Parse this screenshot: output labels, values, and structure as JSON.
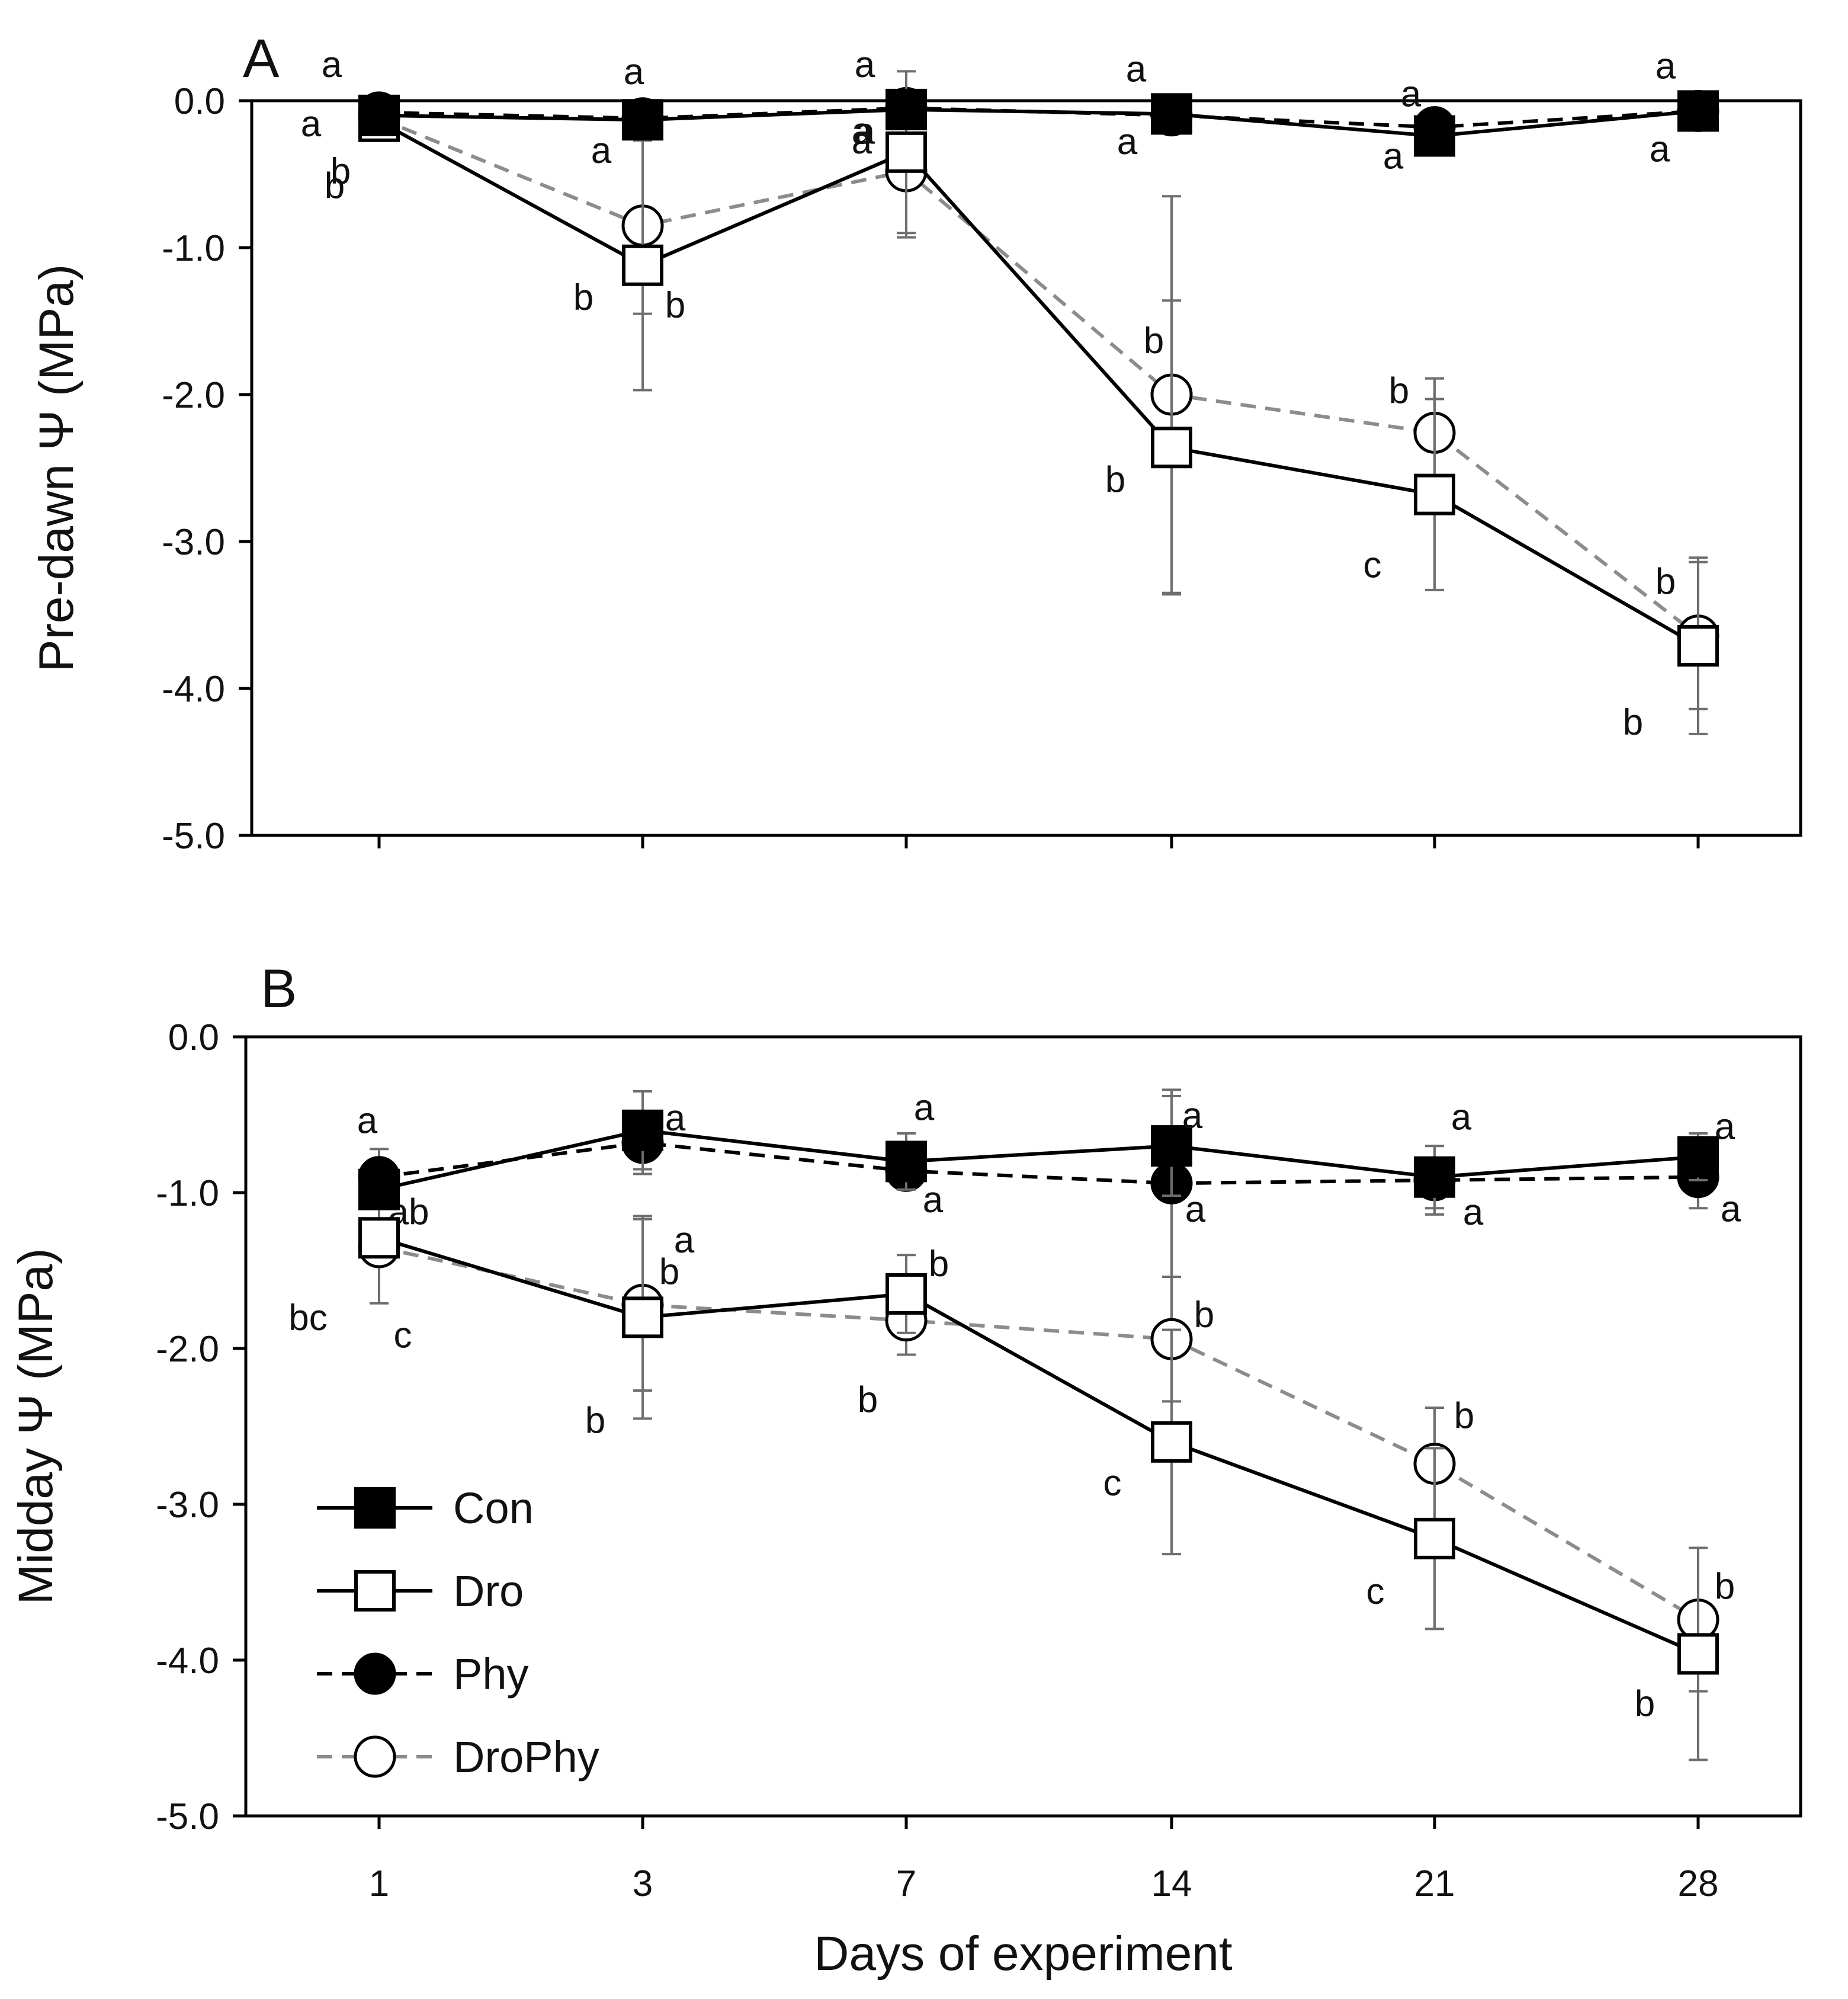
{
  "chart_data": [
    {
      "panel": "A",
      "type": "line",
      "ylabel": "Pre-dawn Ψ (MPa)",
      "xlabel": "",
      "categories": [
        "1",
        "3",
        "7",
        "14",
        "21",
        "28"
      ],
      "yticks": [
        "0.0",
        "-1.0",
        "-2.0",
        "-3.0",
        "-4.0",
        "-5.0"
      ],
      "ylim": [
        -5.0,
        0.0
      ],
      "grid": false,
      "series": [
        {
          "name": "Con",
          "values": [
            -0.1,
            -0.13,
            -0.06,
            -0.09,
            -0.24,
            -0.07
          ],
          "error": [
            0.05,
            0.05,
            0.1,
            0.05,
            0.1,
            0.05
          ],
          "letters": [
            "a",
            "a",
            "a",
            "a",
            "a",
            "a"
          ]
        },
        {
          "name": "Dro",
          "values": [
            -0.14,
            -1.12,
            -0.35,
            -2.36,
            -2.68,
            -3.71
          ],
          "error": [
            0.06,
            0.85,
            0.55,
            1.0,
            0.65,
            0.6
          ],
          "letters": [
            "b",
            "b",
            "a",
            "b",
            "c",
            "b"
          ]
        },
        {
          "name": "Phy",
          "values": [
            -0.08,
            -0.12,
            -0.05,
            -0.1,
            -0.18,
            -0.07
          ],
          "error": [
            0.05,
            0.05,
            0.05,
            0.05,
            0.05,
            0.05
          ],
          "letters": [
            "a",
            "a",
            "a",
            "a",
            "a",
            "a"
          ]
        },
        {
          "name": "DroPhy",
          "values": [
            -0.12,
            -0.85,
            -0.48,
            -2.0,
            -2.26,
            -3.64
          ],
          "error": [
            0.06,
            0.6,
            0.45,
            1.35,
            0.37,
            0.5
          ],
          "letters": [
            "b",
            "b",
            "a",
            "b",
            "b",
            "b"
          ]
        }
      ]
    },
    {
      "panel": "B",
      "type": "line",
      "ylabel": "Midday Ψ (MPa)",
      "xlabel": "Days of experiment",
      "categories": [
        "1",
        "3",
        "7",
        "14",
        "21",
        "28"
      ],
      "yticks": [
        "0.0",
        "-1.0",
        "-2.0",
        "-3.0",
        "-4.0",
        "-5.0"
      ],
      "ylim": [
        -5.0,
        0.0
      ],
      "grid": false,
      "series": [
        {
          "name": "Con",
          "values": [
            -0.98,
            -0.6,
            -0.8,
            -0.7,
            -0.9,
            -0.77
          ],
          "error": [
            0.1,
            0.25,
            0.18,
            0.32,
            0.2,
            0.15
          ],
          "letters": [
            "a",
            "a",
            "a",
            "a",
            "a",
            "a"
          ]
        },
        {
          "name": "Dro",
          "values": [
            -1.29,
            -1.8,
            -1.65,
            -2.6,
            -3.22,
            -3.96
          ],
          "error": [
            0.1,
            0.65,
            0.25,
            0.72,
            0.58,
            0.68
          ],
          "letters": [
            "c",
            "b",
            "b",
            "c",
            "c",
            "b"
          ]
        },
        {
          "name": "Phy",
          "values": [
            -0.9,
            -0.68,
            -0.86,
            -0.94,
            -0.92,
            -0.9
          ],
          "error": [
            0.18,
            0.2,
            0.12,
            0.6,
            0.22,
            0.2
          ],
          "letters": [
            "ab",
            "a",
            "a",
            "a",
            "a",
            "a"
          ]
        },
        {
          "name": "DroPhy",
          "values": [
            -1.35,
            -1.72,
            -1.82,
            -1.94,
            -2.74,
            -3.74
          ],
          "error": [
            0.36,
            0.55,
            0.22,
            0.4,
            0.36,
            0.46
          ],
          "letters": [
            "bc",
            "b",
            "b",
            "b",
            "b",
            "b"
          ]
        }
      ]
    }
  ],
  "legend": {
    "placement": "bottom-left",
    "items": [
      {
        "label": "Con",
        "marker": "filled-square",
        "line": "solid",
        "color": "#000000"
      },
      {
        "label": "Dro",
        "marker": "open-square",
        "line": "solid",
        "color": "#000000"
      },
      {
        "label": "Phy",
        "marker": "filled-circle",
        "line": "dashed",
        "color": "#000000"
      },
      {
        "label": "DroPhy",
        "marker": "open-circle",
        "line": "dashed",
        "color": "#8c8c8c"
      }
    ]
  },
  "colors": {
    "black": "#000000",
    "gray_series": "#8c8c8c",
    "error_bar": "#6e6e6e"
  }
}
